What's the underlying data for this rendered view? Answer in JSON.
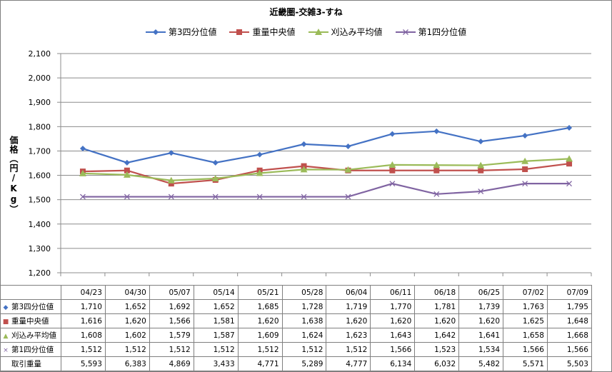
{
  "chart_data": {
    "type": "line",
    "title": "近畿圏-交雑3-すね",
    "ylabel": "価格（円/Kg）",
    "ylim": [
      1200,
      2100
    ],
    "yticks": [
      "1,200",
      "1,300",
      "1,400",
      "1,500",
      "1,600",
      "1,700",
      "1,800",
      "1,900",
      "2,000",
      "2,100"
    ],
    "grid": "horizontal",
    "legend_position": "top",
    "categories": [
      "04/23",
      "04/30",
      "05/07",
      "05/14",
      "05/21",
      "05/28",
      "06/04",
      "06/11",
      "06/18",
      "06/25",
      "07/02",
      "07/09"
    ],
    "series": [
      {
        "name": "第3四分位値",
        "color": "#4472c4",
        "marker": "diamond",
        "values": [
          1710,
          1652,
          1692,
          1652,
          1685,
          1728,
          1719,
          1770,
          1781,
          1739,
          1763,
          1795
        ]
      },
      {
        "name": "重量中央値",
        "color": "#c0504d",
        "marker": "square",
        "values": [
          1616,
          1620,
          1566,
          1581,
          1620,
          1638,
          1620,
          1620,
          1620,
          1620,
          1625,
          1648
        ]
      },
      {
        "name": "刈込み平均値",
        "color": "#9bbb59",
        "marker": "triangle",
        "values": [
          1608,
          1602,
          1579,
          1587,
          1609,
          1624,
          1623,
          1643,
          1642,
          1641,
          1658,
          1668
        ]
      },
      {
        "name": "第1四分位値",
        "color": "#8064a2",
        "marker": "cross",
        "values": [
          1512,
          1512,
          1512,
          1512,
          1512,
          1512,
          1512,
          1566,
          1523,
          1534,
          1566,
          1566
        ]
      }
    ],
    "table": {
      "rows": [
        {
          "label": "第3四分位値",
          "marker": "◆",
          "color": "#4472c4",
          "cells": [
            "1,710",
            "1,652",
            "1,692",
            "1,652",
            "1,685",
            "1,728",
            "1,719",
            "1,770",
            "1,781",
            "1,739",
            "1,763",
            "1,795"
          ]
        },
        {
          "label": "重量中央値",
          "marker": "■",
          "color": "#c0504d",
          "cells": [
            "1,616",
            "1,620",
            "1,566",
            "1,581",
            "1,620",
            "1,638",
            "1,620",
            "1,620",
            "1,620",
            "1,620",
            "1,625",
            "1,648"
          ]
        },
        {
          "label": "刈込み平均値",
          "marker": "▲",
          "color": "#9bbb59",
          "cells": [
            "1,608",
            "1,602",
            "1,579",
            "1,587",
            "1,609",
            "1,624",
            "1,623",
            "1,643",
            "1,642",
            "1,641",
            "1,658",
            "1,668"
          ]
        },
        {
          "label": "第1四分位値",
          "marker": "×",
          "color": "#8064a2",
          "cells": [
            "1,512",
            "1,512",
            "1,512",
            "1,512",
            "1,512",
            "1,512",
            "1,512",
            "1,566",
            "1,523",
            "1,534",
            "1,566",
            "1,566"
          ]
        },
        {
          "label": "取引重量",
          "marker": "",
          "color": "",
          "cells": [
            "5,593",
            "6,383",
            "4,869",
            "3,433",
            "4,771",
            "5,289",
            "4,777",
            "6,134",
            "6,032",
            "5,482",
            "5,571",
            "5,503"
          ]
        }
      ]
    }
  }
}
